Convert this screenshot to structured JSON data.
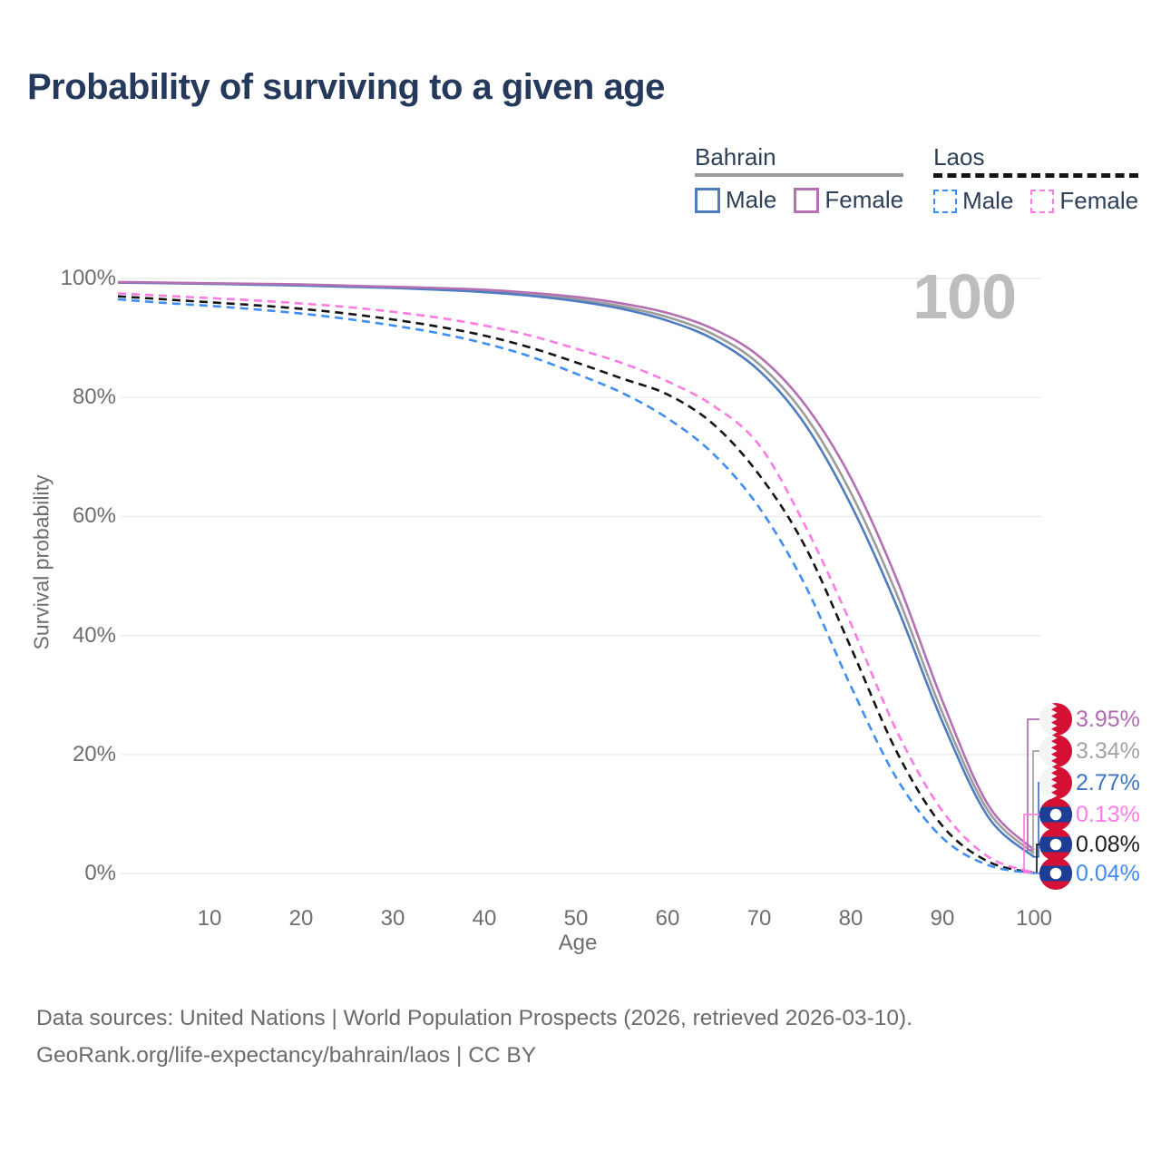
{
  "page": {
    "title": "Probability of surviving to a given age",
    "watermark": "100",
    "footer_line1": "Data sources: United Nations | World Population Prospects (2026, retrieved 2026-03-10).",
    "footer_line2": "GeoRank.org/life-expectancy/bahrain/laos | CC BY"
  },
  "legend": {
    "groups": [
      {
        "label": "Bahrain",
        "line_style": "solid",
        "swatch_color": "#9c9c9c",
        "items": [
          {
            "label": "Male",
            "color": "#4d7cc1"
          },
          {
            "label": "Female",
            "color": "#b470b2"
          }
        ]
      },
      {
        "label": "Laos",
        "line_style": "dashed",
        "swatch_color": "#141414",
        "items": [
          {
            "label": "Male",
            "color": "#3f8ef3"
          },
          {
            "label": "Female",
            "color": "#fb7ce3"
          }
        ]
      }
    ]
  },
  "icons": {
    "bahrain_flag": "bahrain-flag-icon",
    "laos_flag": "laos-flag-icon",
    "flag_red": "#d41135",
    "laos_blue": "#1c3e96"
  },
  "chart_data": {
    "type": "line",
    "title": "Probability of surviving to a given age",
    "xlabel": "Age",
    "ylabel": "Survival probability",
    "xlim": [
      0,
      100
    ],
    "ylim": [
      0,
      100
    ],
    "xticks": [
      10,
      20,
      30,
      40,
      50,
      60,
      70,
      80,
      90,
      100
    ],
    "yticks": [
      0,
      20,
      40,
      60,
      80,
      100
    ],
    "ytick_suffix": "%",
    "grid": "horizontal-only",
    "gridline_color": "#e8e8e8",
    "ages": [
      0,
      5,
      10,
      15,
      20,
      25,
      30,
      35,
      40,
      45,
      50,
      55,
      60,
      65,
      70,
      75,
      80,
      85,
      90,
      95,
      100
    ],
    "series": [
      {
        "id": "bahrain-total",
        "name": "Bahrain Both sexes",
        "country": "Bahrain",
        "sex": "Both",
        "color": "#9c9c9c",
        "dashed": false,
        "values": [
          99.35,
          99.25,
          99.15,
          99.05,
          98.9,
          98.7,
          98.5,
          98.2,
          97.9,
          97.3,
          96.5,
          95.3,
          93.5,
          90.6,
          85.6,
          77.0,
          64.0,
          47.0,
          27.0,
          10.5,
          3.34
        ]
      },
      {
        "id": "bahrain-male",
        "name": "Bahrain Male",
        "country": "Bahrain",
        "sex": "Male",
        "color": "#4d7cc1",
        "dashed": false,
        "values": [
          99.3,
          99.2,
          99.1,
          98.95,
          98.8,
          98.6,
          98.4,
          98.1,
          97.7,
          97.1,
          96.2,
          94.9,
          92.9,
          89.8,
          84.5,
          75.5,
          62.0,
          45.0,
          25.5,
          9.5,
          2.77
        ]
      },
      {
        "id": "bahrain-female",
        "name": "Bahrain Female",
        "country": "Bahrain",
        "sex": "Female",
        "color": "#b470b2",
        "dashed": false,
        "values": [
          99.4,
          99.3,
          99.2,
          99.1,
          99.0,
          98.8,
          98.6,
          98.4,
          98.1,
          97.6,
          96.9,
          95.8,
          94.2,
          91.5,
          86.9,
          78.8,
          66.5,
          49.5,
          29.0,
          11.5,
          3.95
        ]
      },
      {
        "id": "laos-total",
        "name": "Laos Both sexes",
        "country": "Laos",
        "sex": "Both",
        "color": "#141414",
        "dashed": true,
        "values": [
          97.0,
          96.5,
          96.0,
          95.5,
          94.9,
          94.1,
          93.1,
          91.9,
          90.4,
          88.4,
          85.9,
          83.2,
          80.5,
          75.5,
          67.0,
          55.0,
          38.0,
          20.5,
          8.0,
          2.0,
          0.08
        ]
      },
      {
        "id": "laos-male",
        "name": "Laos Male",
        "country": "Laos",
        "sex": "Male",
        "color": "#3f8ef3",
        "dashed": true,
        "values": [
          96.5,
          95.9,
          95.4,
          94.8,
          94.1,
          93.2,
          92.1,
          90.8,
          89.1,
          86.9,
          84.0,
          80.8,
          76.5,
          70.5,
          61.5,
          48.5,
          31.5,
          16.0,
          6.0,
          1.4,
          0.04
        ]
      },
      {
        "id": "laos-female",
        "name": "Laos Female",
        "country": "Laos",
        "sex": "Female",
        "color": "#fb7ce3",
        "dashed": true,
        "values": [
          97.5,
          97.1,
          96.7,
          96.3,
          95.8,
          95.2,
          94.4,
          93.4,
          92.1,
          90.4,
          88.2,
          85.8,
          82.7,
          78.6,
          72.0,
          58.5,
          42.0,
          24.0,
          10.5,
          2.8,
          0.13
        ]
      }
    ],
    "end_labels": [
      {
        "text": "3.95%",
        "value": 3.95,
        "color": "#b06ab2",
        "flag": "bahrain",
        "series": "bahrain-female"
      },
      {
        "text": "3.34%",
        "value": 3.34,
        "color": "#a3a3a3",
        "flag": "bahrain",
        "series": "bahrain-total"
      },
      {
        "text": "2.77%",
        "value": 2.77,
        "color": "#3f74c4",
        "flag": "bahrain",
        "series": "bahrain-male"
      },
      {
        "text": "0.13%",
        "value": 0.13,
        "color": "#ff7de9",
        "flag": "laos",
        "series": "laos-female"
      },
      {
        "text": "0.08%",
        "value": 0.08,
        "color": "#1c1c1c",
        "flag": "laos",
        "series": "laos-total"
      },
      {
        "text": "0.04%",
        "value": 0.04,
        "color": "#3f8bf2",
        "flag": "laos",
        "series": "laos-male"
      }
    ]
  }
}
